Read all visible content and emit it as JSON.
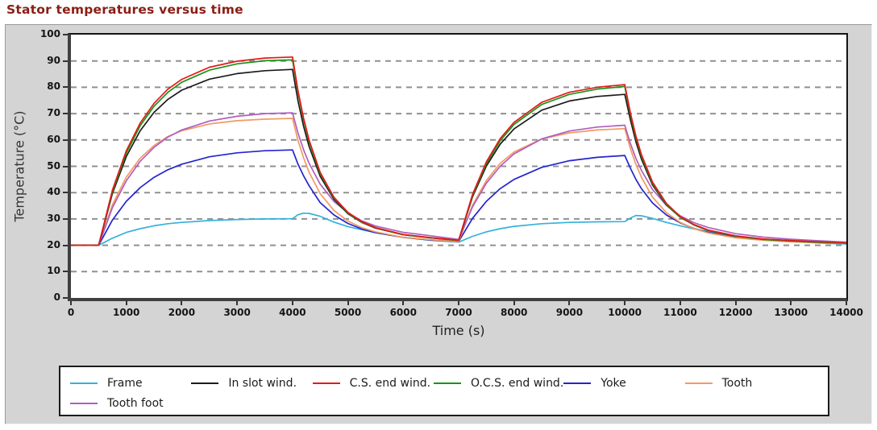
{
  "page": {
    "title": "Stator temperatures versus time"
  },
  "colors": {
    "title": "#8a1e14",
    "panel_bg": "#d4d4d4",
    "plot_bg": "#ffffff",
    "grid": "#909090",
    "axis": "#3f3f3f",
    "tick_label": "#141414",
    "legend_border": "#1c1c1c"
  },
  "chart_data": {
    "type": "line",
    "title": "Stator temperatures versus time",
    "xlabel": "Time (s)",
    "ylabel": "Temperature (°C)",
    "xlim": [
      0,
      14000
    ],
    "ylim": [
      0,
      100
    ],
    "x_ticks": [
      0,
      1000,
      2000,
      3000,
      4000,
      5000,
      6000,
      7000,
      8000,
      9000,
      10000,
      11000,
      12000,
      13000,
      14000
    ],
    "y_ticks": [
      0,
      10,
      20,
      30,
      40,
      50,
      60,
      70,
      80,
      90,
      100
    ],
    "grid": "horizontal-dashed",
    "legend_position": "bottom",
    "x": [
      0,
      500,
      750,
      1000,
      1250,
      1500,
      1750,
      2000,
      2500,
      3000,
      3500,
      4000,
      4100,
      4200,
      4300,
      4500,
      4750,
      5000,
      5250,
      5500,
      6000,
      6500,
      7000,
      7250,
      7500,
      7750,
      8000,
      8500,
      9000,
      9500,
      10000,
      10100,
      10200,
      10300,
      10500,
      10750,
      11000,
      11250,
      11500,
      12000,
      12500,
      13000,
      13500,
      14000
    ],
    "series": [
      {
        "name": "Frame",
        "color": "#35b1dc",
        "values": [
          20,
          20,
          22.7,
          24.9,
          26.3,
          27.4,
          28.2,
          28.7,
          29.4,
          29.8,
          30.0,
          30.1,
          31.6,
          32.2,
          32.1,
          31.0,
          28.8,
          27.1,
          25.9,
          24.8,
          23.0,
          21.9,
          21.2,
          23.4,
          25.1,
          26.3,
          27.2,
          28.2,
          28.7,
          28.9,
          29.0,
          30.3,
          31.3,
          31.2,
          30.2,
          28.7,
          27.4,
          26.2,
          25.2,
          23.5,
          22.3,
          21.5,
          20.9,
          20.5
        ]
      },
      {
        "name": "In slot wind.",
        "color": "#1c1c1c",
        "values": [
          20,
          20,
          39.7,
          53.7,
          63.5,
          70.5,
          75.4,
          78.9,
          83.1,
          85.2,
          86.3,
          86.8,
          74.8,
          65.2,
          57.5,
          46.2,
          37.4,
          32.0,
          28.7,
          26.5,
          24.0,
          22.8,
          21.8,
          38.4,
          50.1,
          58.4,
          64.2,
          71.3,
          74.8,
          76.5,
          77.3,
          67.7,
          59.3,
          52.7,
          42.9,
          35.3,
          30.6,
          27.7,
          25.7,
          23.5,
          22.3,
          21.7,
          21.2,
          20.9
        ]
      },
      {
        "name": "C.S. end wind.",
        "color": "#e51919",
        "values": [
          20,
          20,
          41.0,
          55.9,
          66.4,
          73.9,
          79.3,
          83.0,
          87.6,
          89.9,
          91.1,
          91.5,
          78.7,
          68.3,
          59.9,
          47.7,
          38.2,
          32.5,
          29.0,
          26.7,
          24.1,
          22.9,
          21.9,
          39.3,
          51.7,
          60.5,
          66.7,
          74.3,
          78.1,
          80.0,
          81.0,
          70.4,
          61.5,
          54.4,
          44.0,
          35.9,
          30.9,
          27.9,
          25.8,
          23.6,
          22.4,
          21.8,
          21.3,
          21.0
        ]
      },
      {
        "name": "O.C.S. end wind.",
        "color": "#189418",
        "values": [
          20,
          20,
          40.4,
          55.0,
          65.4,
          72.8,
          78.1,
          81.9,
          86.5,
          88.9,
          90.1,
          90.4,
          77.9,
          67.6,
          59.3,
          47.2,
          37.9,
          32.2,
          28.8,
          26.6,
          24.0,
          22.8,
          21.8,
          38.9,
          51.0,
          59.7,
          65.9,
          73.5,
          77.3,
          79.3,
          80.3,
          69.7,
          60.9,
          53.8,
          43.5,
          35.5,
          30.6,
          27.7,
          25.6,
          23.4,
          22.2,
          21.6,
          21.1,
          20.8
        ]
      },
      {
        "name": "Yoke",
        "color": "#2424cf",
        "values": [
          20,
          20,
          29.6,
          36.7,
          41.9,
          45.8,
          48.7,
          50.8,
          53.6,
          55.1,
          55.9,
          56.2,
          50.8,
          46.4,
          42.6,
          36.2,
          31.5,
          28.3,
          26.2,
          24.8,
          23.0,
          22.0,
          21.4,
          30.2,
          36.7,
          41.5,
          45.0,
          49.6,
          52.1,
          53.4,
          54.1,
          49.3,
          45.0,
          41.5,
          36.1,
          31.5,
          28.5,
          26.4,
          24.9,
          23.1,
          22.1,
          21.5,
          21.0,
          20.7
        ]
      },
      {
        "name": "Tooth",
        "color": "#f29a60",
        "values": [
          20,
          20,
          35.4,
          45.9,
          53.1,
          57.9,
          61.3,
          63.5,
          66.1,
          67.3,
          67.9,
          68.2,
          59.8,
          53.2,
          47.7,
          39.6,
          33.2,
          29.2,
          26.7,
          25.1,
          23.0,
          22.1,
          21.4,
          35.2,
          44.6,
          51.1,
          55.4,
          60.4,
          62.7,
          63.8,
          64.3,
          56.8,
          50.7,
          45.8,
          38.3,
          32.4,
          28.7,
          26.3,
          24.7,
          22.8,
          21.9,
          21.3,
          20.9,
          20.7
        ]
      },
      {
        "name": "Tooth foot",
        "color": "#b05ec0",
        "values": [
          20,
          20,
          34.3,
          44.5,
          51.9,
          57.2,
          61.1,
          63.8,
          67.2,
          69.0,
          70.0,
          70.3,
          62.6,
          56.3,
          51.1,
          43.2,
          36.6,
          32.3,
          29.3,
          27.3,
          24.9,
          23.6,
          22.2,
          34.6,
          43.6,
          50.0,
          54.7,
          60.4,
          63.4,
          64.9,
          65.6,
          58.7,
          53.0,
          48.4,
          41.2,
          35.2,
          31.2,
          28.6,
          26.8,
          24.4,
          23.1,
          22.3,
          21.7,
          21.2
        ]
      }
    ],
    "draw_order": [
      0,
      4,
      5,
      6,
      1,
      3,
      2
    ]
  }
}
